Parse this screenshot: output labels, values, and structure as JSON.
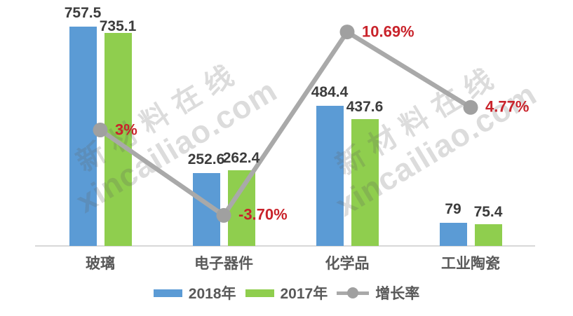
{
  "chart_data": {
    "type": "bar",
    "title": "",
    "categories": [
      "玻璃",
      "电子器件",
      "化学品",
      "工业陶瓷"
    ],
    "series": [
      {
        "name": "2018年",
        "type": "bar",
        "color": "#5B9BD5",
        "values": [
          757.5,
          252.6,
          484.4,
          79
        ],
        "labels": [
          "757.5",
          "252.6",
          "484.4",
          "79"
        ]
      },
      {
        "name": "2017年",
        "type": "bar",
        "color": "#8FCE4E",
        "values": [
          735.1,
          262.4,
          437.6,
          75.4
        ],
        "labels": [
          "735.1",
          "262.4",
          "437.6",
          "75.4"
        ]
      },
      {
        "name": "增长率",
        "type": "line",
        "color": "#A9A9A9",
        "dot_color": "#A0A0A0",
        "label_color": "#C9232B",
        "values": [
          3,
          -3.7,
          10.69,
          4.77
        ],
        "labels": [
          "3%",
          "-3.70%",
          "10.69%",
          "4.77%"
        ]
      }
    ],
    "y1lim": [
      0,
      850
    ],
    "y2lim": [
      -6.1,
      13.2
    ],
    "grid": false,
    "legend_position": "bottom"
  },
  "watermark": {
    "line1": "新材料在线",
    "line2": "xincailiao.com"
  },
  "colors": {
    "axis_line": "#D8D8D8",
    "value_label": "#3C3C3C",
    "category_label": "#595959"
  }
}
